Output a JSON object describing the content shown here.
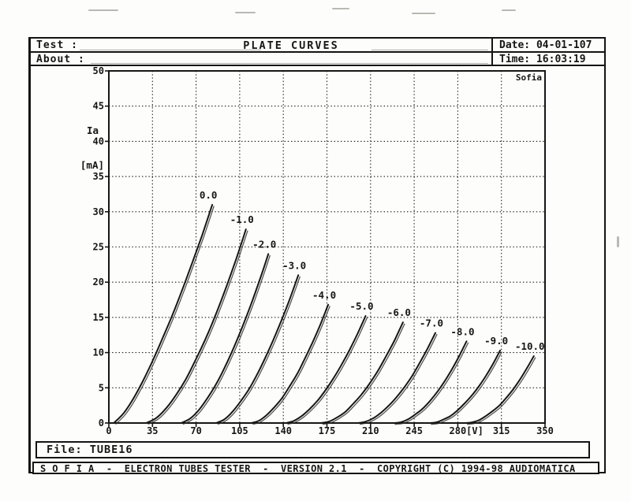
{
  "header": {
    "test_label": "Test :",
    "about_label": "About :",
    "title": "PLATE CURVES",
    "date_label": "Date:",
    "date_value": "04-01-107",
    "time_label": "Time:",
    "time_value": "16:03:19"
  },
  "file_box": {
    "label": "File:",
    "value": "TUBE16"
  },
  "footer": {
    "text": "S O F I A  -  ELECTRON TUBES TESTER  -  VERSION 2.1  -  COPYRIGHT (C) 1994-98 AUDIOMATICA"
  },
  "colors": {
    "ink": "#161616",
    "paper": "#fdfdfb"
  },
  "chart_data": {
    "type": "line",
    "title": "PLATE CURVES",
    "watermark": "Sofia",
    "xlabel": "[V]",
    "ylabel_line1": "Ia",
    "ylabel_line2": "[mA]",
    "xlim": [
      0,
      350
    ],
    "ylim": [
      0,
      50
    ],
    "xticks": [
      0,
      35,
      70,
      105,
      140,
      175,
      210,
      245,
      280,
      315,
      350
    ],
    "yticks": [
      0,
      5,
      10,
      15,
      20,
      25,
      30,
      35,
      40,
      45,
      50
    ],
    "grid": "dotted",
    "legend_position": "labels-at-curve-tips",
    "series": [
      {
        "name": "0.0",
        "grid_voltage": 0,
        "points": [
          [
            4,
            0
          ],
          [
            11.9,
            1.4
          ],
          [
            19.8,
            3.5
          ],
          [
            27.7,
            6.1
          ],
          [
            35.6,
            9.0
          ],
          [
            43.5,
            12.2
          ],
          [
            51.4,
            15.5
          ],
          [
            59.3,
            19.1
          ],
          [
            67.2,
            22.9
          ],
          [
            75.1,
            26.8
          ],
          [
            83,
            31
          ]
        ]
      },
      {
        "name": "-1.0",
        "grid_voltage": -1,
        "points": [
          [
            30,
            0
          ],
          [
            38,
            0.7
          ],
          [
            46,
            2.1
          ],
          [
            54,
            4.0
          ],
          [
            62,
            6.3
          ],
          [
            70,
            9.1
          ],
          [
            78,
            12.1
          ],
          [
            86,
            15.5
          ],
          [
            94,
            19.2
          ],
          [
            102,
            23.2
          ],
          [
            110,
            27.5
          ]
        ]
      },
      {
        "name": "-2.0",
        "grid_voltage": -2,
        "points": [
          [
            58,
            0
          ],
          [
            65,
            0.6
          ],
          [
            72,
            1.8
          ],
          [
            79,
            3.5
          ],
          [
            86,
            5.5
          ],
          [
            93,
            7.9
          ],
          [
            100,
            10.6
          ],
          [
            107,
            13.6
          ],
          [
            114,
            16.8
          ],
          [
            121,
            20.3
          ],
          [
            128,
            24
          ]
        ]
      },
      {
        "name": "-3.0",
        "grid_voltage": -3,
        "points": [
          [
            86,
            0
          ],
          [
            92.6,
            0.5
          ],
          [
            99.2,
            1.6
          ],
          [
            105.8,
            3.1
          ],
          [
            112.4,
            4.8
          ],
          [
            119,
            6.9
          ],
          [
            125.6,
            9.3
          ],
          [
            132.2,
            11.9
          ],
          [
            138.8,
            14.7
          ],
          [
            145.4,
            17.7
          ],
          [
            152,
            21
          ]
        ]
      },
      {
        "name": "-4.0",
        "grid_voltage": -4,
        "points": [
          [
            114,
            0
          ],
          [
            120.2,
            0.3
          ],
          [
            126.4,
            1.1
          ],
          [
            132.6,
            2.2
          ],
          [
            138.8,
            3.5
          ],
          [
            145,
            5.2
          ],
          [
            151.2,
            7.0
          ],
          [
            157.4,
            9.2
          ],
          [
            163.6,
            11.5
          ],
          [
            169.8,
            14.0
          ],
          [
            176,
            16.8
          ]
        ]
      },
      {
        "name": "-5.0",
        "grid_voltage": -5,
        "points": [
          [
            142,
            0
          ],
          [
            148.4,
            0.3
          ],
          [
            154.8,
            1.0
          ],
          [
            161.2,
            2.0
          ],
          [
            167.6,
            3.2
          ],
          [
            174,
            4.7
          ],
          [
            180.4,
            6.4
          ],
          [
            186.8,
            8.3
          ],
          [
            193.2,
            10.4
          ],
          [
            199.6,
            12.7
          ],
          [
            206,
            15.2
          ]
        ]
      },
      {
        "name": "-6.0",
        "grid_voltage": -6,
        "points": [
          [
            170,
            0
          ],
          [
            176.6,
            0.2
          ],
          [
            183.2,
            0.8
          ],
          [
            189.8,
            1.6
          ],
          [
            196.4,
            2.8
          ],
          [
            203,
            4.1
          ],
          [
            209.6,
            5.7
          ],
          [
            216.2,
            7.5
          ],
          [
            222.8,
            9.6
          ],
          [
            229.4,
            11.8
          ],
          [
            236,
            14.3
          ]
        ]
      },
      {
        "name": "-7.0",
        "grid_voltage": -7,
        "points": [
          [
            200,
            0
          ],
          [
            206.2,
            0.2
          ],
          [
            212.4,
            0.7
          ],
          [
            218.6,
            1.5
          ],
          [
            224.8,
            2.5
          ],
          [
            231,
            3.7
          ],
          [
            237.2,
            5.1
          ],
          [
            243.4,
            6.7
          ],
          [
            249.6,
            8.6
          ],
          [
            255.8,
            10.6
          ],
          [
            262,
            12.8
          ]
        ]
      },
      {
        "name": "-8.0",
        "grid_voltage": -8,
        "points": [
          [
            228,
            0
          ],
          [
            233.9,
            0.1
          ],
          [
            239.8,
            0.5
          ],
          [
            245.7,
            1.2
          ],
          [
            251.6,
            2.0
          ],
          [
            257.5,
            3.1
          ],
          [
            263.4,
            4.4
          ],
          [
            269.3,
            5.9
          ],
          [
            275.2,
            7.6
          ],
          [
            281.1,
            9.5
          ],
          [
            287,
            11.6
          ]
        ]
      },
      {
        "name": "-9.0",
        "grid_voltage": -9,
        "points": [
          [
            257,
            0
          ],
          [
            262.7,
            0.1
          ],
          [
            268.4,
            0.5
          ],
          [
            274.1,
            1.0
          ],
          [
            279.8,
            1.8
          ],
          [
            285.5,
            2.8
          ],
          [
            291.2,
            3.9
          ],
          [
            296.9,
            5.2
          ],
          [
            302.6,
            6.7
          ],
          [
            308.3,
            8.4
          ],
          [
            314,
            10.3
          ]
        ]
      },
      {
        "name": "-10.0",
        "grid_voltage": -10,
        "points": [
          [
            286,
            0
          ],
          [
            291.5,
            0.1
          ],
          [
            297,
            0.4
          ],
          [
            302.5,
            1.0
          ],
          [
            308,
            1.7
          ],
          [
            313.5,
            2.5
          ],
          [
            319,
            3.6
          ],
          [
            324.5,
            4.8
          ],
          [
            330,
            6.2
          ],
          [
            335.5,
            7.8
          ],
          [
            341,
            9.5
          ]
        ]
      }
    ]
  }
}
